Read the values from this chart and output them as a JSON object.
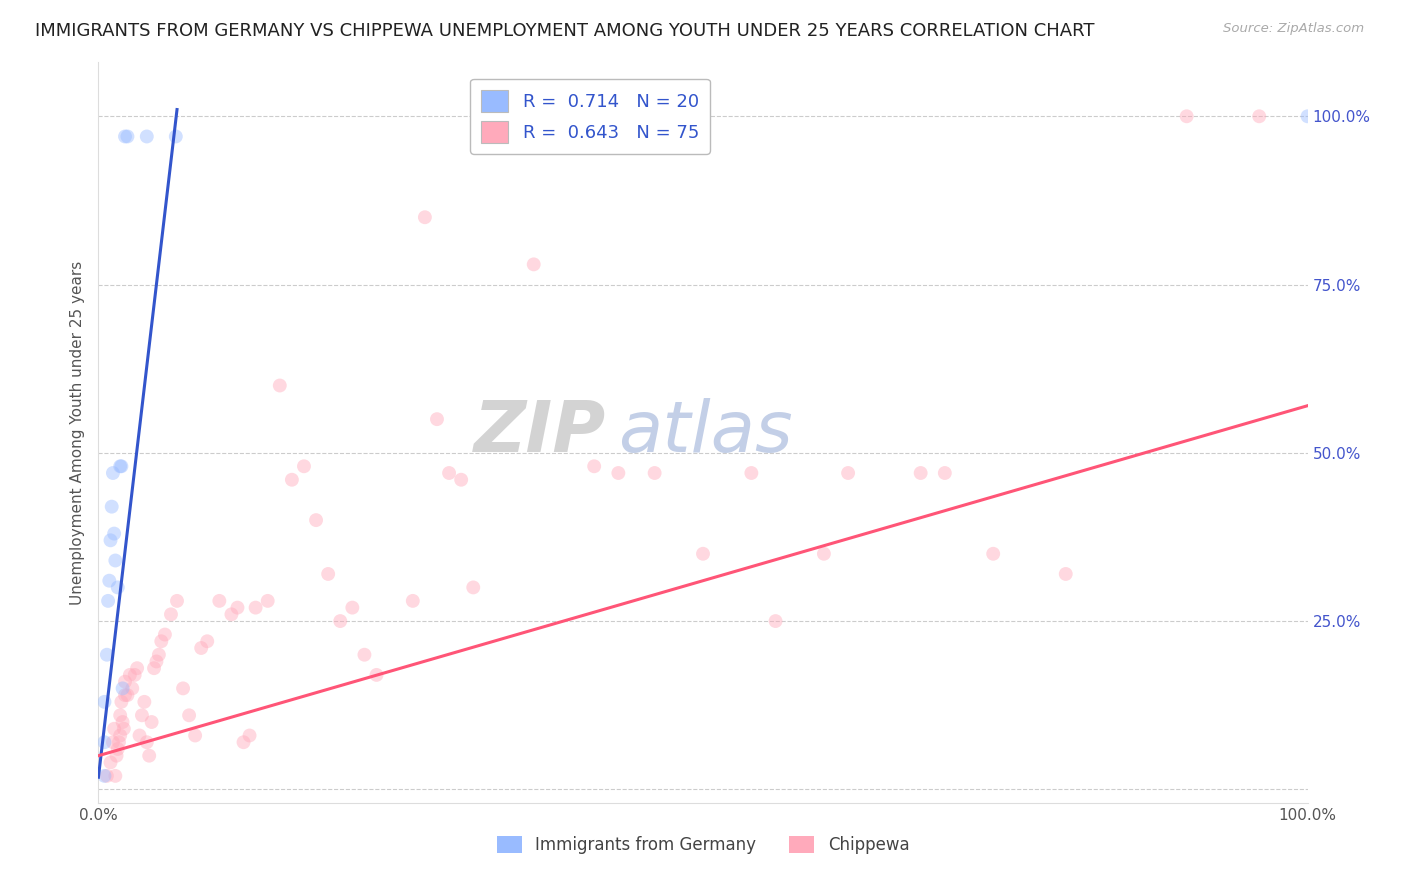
{
  "title": "IMMIGRANTS FROM GERMANY VS CHIPPEWA UNEMPLOYMENT AMONG YOUTH UNDER 25 YEARS CORRELATION CHART",
  "source": "Source: ZipAtlas.com",
  "ylabel": "Unemployment Among Youth under 25 years",
  "watermark_zip": "ZIP",
  "watermark_atlas": "atlas",
  "legend_blue_r": "0.714",
  "legend_blue_n": "20",
  "legend_pink_r": "0.643",
  "legend_pink_n": "75",
  "legend_label_blue": "Immigrants from Germany",
  "legend_label_pink": "Chippewa",
  "blue_scatter_color": "#99bbff",
  "pink_scatter_color": "#ffaabb",
  "blue_line_color": "#3355cc",
  "pink_line_color": "#ff5577",
  "legend_r_n_color": "#3355cc",
  "right_tick_color": "#4455cc",
  "blue_scatter": [
    [
      0.005,
      0.02
    ],
    [
      0.005,
      0.07
    ],
    [
      0.005,
      0.13
    ],
    [
      0.007,
      0.2
    ],
    [
      0.008,
      0.28
    ],
    [
      0.009,
      0.31
    ],
    [
      0.01,
      0.37
    ],
    [
      0.011,
      0.42
    ],
    [
      0.012,
      0.47
    ],
    [
      0.013,
      0.38
    ],
    [
      0.014,
      0.34
    ],
    [
      0.016,
      0.3
    ],
    [
      0.018,
      0.48
    ],
    [
      0.019,
      0.48
    ],
    [
      0.02,
      0.15
    ],
    [
      0.022,
      0.97
    ],
    [
      0.024,
      0.97
    ],
    [
      0.04,
      0.97
    ],
    [
      0.064,
      0.97
    ],
    [
      1.0,
      1.0
    ]
  ],
  "pink_scatter": [
    [
      0.007,
      0.02
    ],
    [
      0.01,
      0.04
    ],
    [
      0.012,
      0.07
    ],
    [
      0.013,
      0.09
    ],
    [
      0.014,
      0.02
    ],
    [
      0.015,
      0.05
    ],
    [
      0.016,
      0.06
    ],
    [
      0.017,
      0.07
    ],
    [
      0.018,
      0.08
    ],
    [
      0.018,
      0.11
    ],
    [
      0.019,
      0.13
    ],
    [
      0.02,
      0.1
    ],
    [
      0.021,
      0.09
    ],
    [
      0.022,
      0.14
    ],
    [
      0.022,
      0.16
    ],
    [
      0.024,
      0.14
    ],
    [
      0.026,
      0.17
    ],
    [
      0.028,
      0.15
    ],
    [
      0.03,
      0.17
    ],
    [
      0.032,
      0.18
    ],
    [
      0.034,
      0.08
    ],
    [
      0.036,
      0.11
    ],
    [
      0.038,
      0.13
    ],
    [
      0.04,
      0.07
    ],
    [
      0.042,
      0.05
    ],
    [
      0.044,
      0.1
    ],
    [
      0.046,
      0.18
    ],
    [
      0.048,
      0.19
    ],
    [
      0.05,
      0.2
    ],
    [
      0.052,
      0.22
    ],
    [
      0.055,
      0.23
    ],
    [
      0.06,
      0.26
    ],
    [
      0.065,
      0.28
    ],
    [
      0.07,
      0.15
    ],
    [
      0.075,
      0.11
    ],
    [
      0.08,
      0.08
    ],
    [
      0.085,
      0.21
    ],
    [
      0.09,
      0.22
    ],
    [
      0.1,
      0.28
    ],
    [
      0.11,
      0.26
    ],
    [
      0.115,
      0.27
    ],
    [
      0.12,
      0.07
    ],
    [
      0.125,
      0.08
    ],
    [
      0.13,
      0.27
    ],
    [
      0.14,
      0.28
    ],
    [
      0.15,
      0.6
    ],
    [
      0.16,
      0.46
    ],
    [
      0.17,
      0.48
    ],
    [
      0.18,
      0.4
    ],
    [
      0.19,
      0.32
    ],
    [
      0.2,
      0.25
    ],
    [
      0.21,
      0.27
    ],
    [
      0.22,
      0.2
    ],
    [
      0.23,
      0.17
    ],
    [
      0.26,
      0.28
    ],
    [
      0.27,
      0.85
    ],
    [
      0.28,
      0.55
    ],
    [
      0.29,
      0.47
    ],
    [
      0.3,
      0.46
    ],
    [
      0.31,
      0.3
    ],
    [
      0.36,
      0.78
    ],
    [
      0.41,
      0.48
    ],
    [
      0.43,
      0.47
    ],
    [
      0.46,
      0.47
    ],
    [
      0.5,
      0.35
    ],
    [
      0.54,
      0.47
    ],
    [
      0.56,
      0.25
    ],
    [
      0.6,
      0.35
    ],
    [
      0.62,
      0.47
    ],
    [
      0.68,
      0.47
    ],
    [
      0.7,
      0.47
    ],
    [
      0.74,
      0.35
    ],
    [
      0.8,
      0.32
    ],
    [
      0.9,
      1.0
    ],
    [
      0.96,
      1.0
    ]
  ],
  "xlim": [
    0.0,
    1.0
  ],
  "ylim": [
    -0.02,
    1.08
  ],
  "blue_trend_x": [
    0.0,
    0.065
  ],
  "blue_trend_y": [
    0.018,
    1.01
  ],
  "pink_trend_x": [
    0.0,
    1.0
  ],
  "pink_trend_y": [
    0.05,
    0.57
  ],
  "grid_color": "#cccccc",
  "background_color": "#ffffff",
  "title_fontsize": 13,
  "ylabel_fontsize": 11,
  "tick_fontsize": 11,
  "scatter_size": 100,
  "scatter_alpha": 0.45,
  "line_width": 2.2
}
